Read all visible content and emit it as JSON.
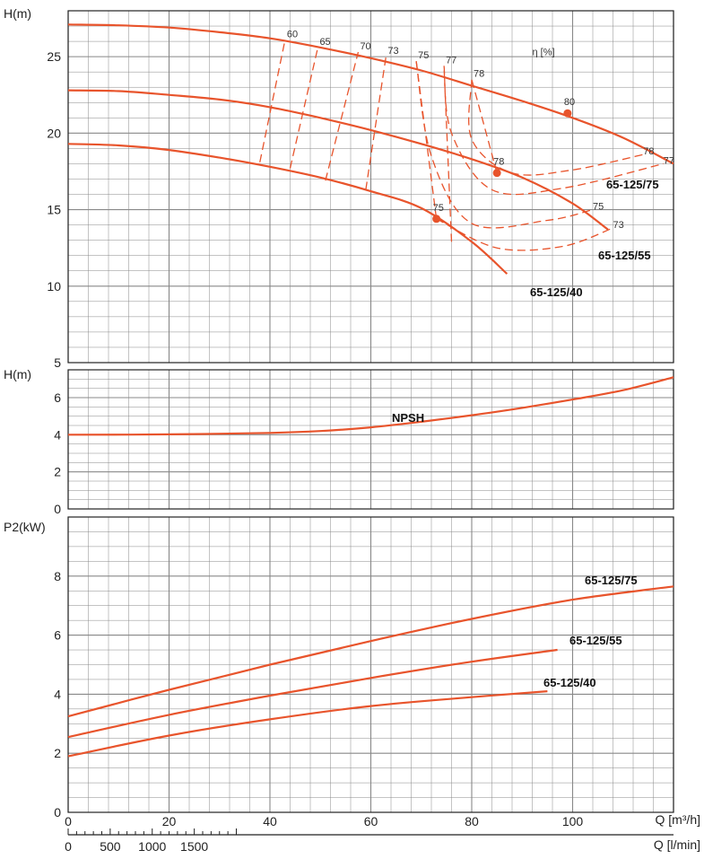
{
  "chart_data": [
    {
      "panel": "head",
      "type": "line",
      "ylabel": "H(m)",
      "ylim": [
        5,
        28
      ],
      "yticks": [
        5,
        10,
        15,
        20,
        25
      ],
      "xlim": [
        0,
        120
      ],
      "eff_label": "η [%]",
      "series": [
        {
          "name": "65-125/75",
          "x": [
            0,
            10,
            20,
            30,
            40,
            50,
            60,
            70,
            80,
            90,
            100,
            110,
            120
          ],
          "y": [
            27.1,
            27.05,
            26.9,
            26.6,
            26.2,
            25.6,
            24.9,
            24.1,
            23.1,
            22.1,
            21.0,
            19.7,
            18.0
          ]
        },
        {
          "name": "65-125/55",
          "x": [
            0,
            10,
            20,
            30,
            40,
            50,
            60,
            70,
            80,
            90,
            100,
            107
          ],
          "y": [
            22.8,
            22.75,
            22.5,
            22.2,
            21.7,
            21.0,
            20.2,
            19.3,
            18.3,
            17.1,
            15.4,
            13.7
          ]
        },
        {
          "name": "65-125/40",
          "x": [
            0,
            10,
            20,
            30,
            40,
            50,
            60,
            70,
            80,
            87
          ],
          "y": [
            19.3,
            19.2,
            18.9,
            18.4,
            17.8,
            17.1,
            16.2,
            15.1,
            12.9,
            10.8
          ]
        }
      ],
      "efficiency": [
        {
          "label": "60",
          "x": [
            38,
            43
          ],
          "y": [
            18.1,
            26.1
          ]
        },
        {
          "label": "65",
          "x": [
            44,
            49.5
          ],
          "y": [
            17.7,
            25.6
          ]
        },
        {
          "label": "70",
          "x": [
            51,
            57.5
          ],
          "y": [
            16.9,
            25.3
          ]
        },
        {
          "label": "73",
          "x": [
            59,
            63
          ],
          "y": [
            16.3,
            25.0
          ]
        },
        {
          "label": "75",
          "x": [
            73,
            69
          ],
          "y": [
            14.4,
            24.7
          ]
        },
        {
          "label": "77",
          "x": [
            76,
            74.5
          ],
          "y": [
            12.9,
            24.4
          ]
        },
        {
          "label": "78",
          "x": [
            85,
            80
          ],
          "y": [
            17.4,
            23.5
          ]
        }
      ],
      "eff_marks": [
        {
          "x": 99,
          "y": 21.3,
          "label": "80"
        },
        {
          "x": 85,
          "y": 17.4,
          "label": "78"
        },
        {
          "x": 73,
          "y": 14.4,
          "label": "75"
        }
      ],
      "eff_right_labels": [
        {
          "x": 114,
          "y": 18.6,
          "label": "78"
        },
        {
          "x": 118,
          "y": 18.0,
          "label": "77"
        },
        {
          "x": 104,
          "y": 15.0,
          "label": "75"
        },
        {
          "x": 108,
          "y": 13.8,
          "label": "73"
        }
      ]
    },
    {
      "panel": "npsh",
      "type": "line",
      "ylabel": "H(m)",
      "ylim": [
        0,
        7.5
      ],
      "yticks": [
        0,
        2,
        4,
        6
      ],
      "xlim": [
        0,
        120
      ],
      "series": [
        {
          "name": "NPSH",
          "x": [
            0,
            20,
            40,
            50,
            60,
            70,
            80,
            90,
            100,
            110,
            120
          ],
          "y": [
            4.0,
            4.02,
            4.1,
            4.2,
            4.4,
            4.7,
            5.05,
            5.45,
            5.9,
            6.4,
            7.1
          ]
        }
      ]
    },
    {
      "panel": "power",
      "type": "line",
      "ylabel": "P2(kW)",
      "ylim": [
        0,
        10
      ],
      "yticks": [
        0,
        2,
        4,
        6,
        8
      ],
      "xlim": [
        0,
        120
      ],
      "xlabel": "Q [m³/h]",
      "xticks": [
        0,
        20,
        40,
        60,
        80,
        100
      ],
      "x2label": "Q [l/min]",
      "x2ticks": [
        0,
        500,
        1000,
        1500
      ],
      "series": [
        {
          "name": "65-125/75",
          "x": [
            0,
            20,
            40,
            60,
            80,
            100,
            120
          ],
          "y": [
            3.25,
            4.15,
            5.0,
            5.8,
            6.55,
            7.2,
            7.65
          ]
        },
        {
          "name": "65-125/55",
          "x": [
            0,
            20,
            40,
            60,
            80,
            97
          ],
          "y": [
            2.55,
            3.3,
            3.95,
            4.55,
            5.1,
            5.5
          ]
        },
        {
          "name": "65-125/40",
          "x": [
            0,
            20,
            40,
            60,
            80,
            95
          ],
          "y": [
            1.9,
            2.6,
            3.15,
            3.6,
            3.9,
            4.1
          ]
        }
      ]
    }
  ],
  "colors": {
    "curve": "#e8542c",
    "grid": "#888888",
    "axis": "#222222"
  }
}
